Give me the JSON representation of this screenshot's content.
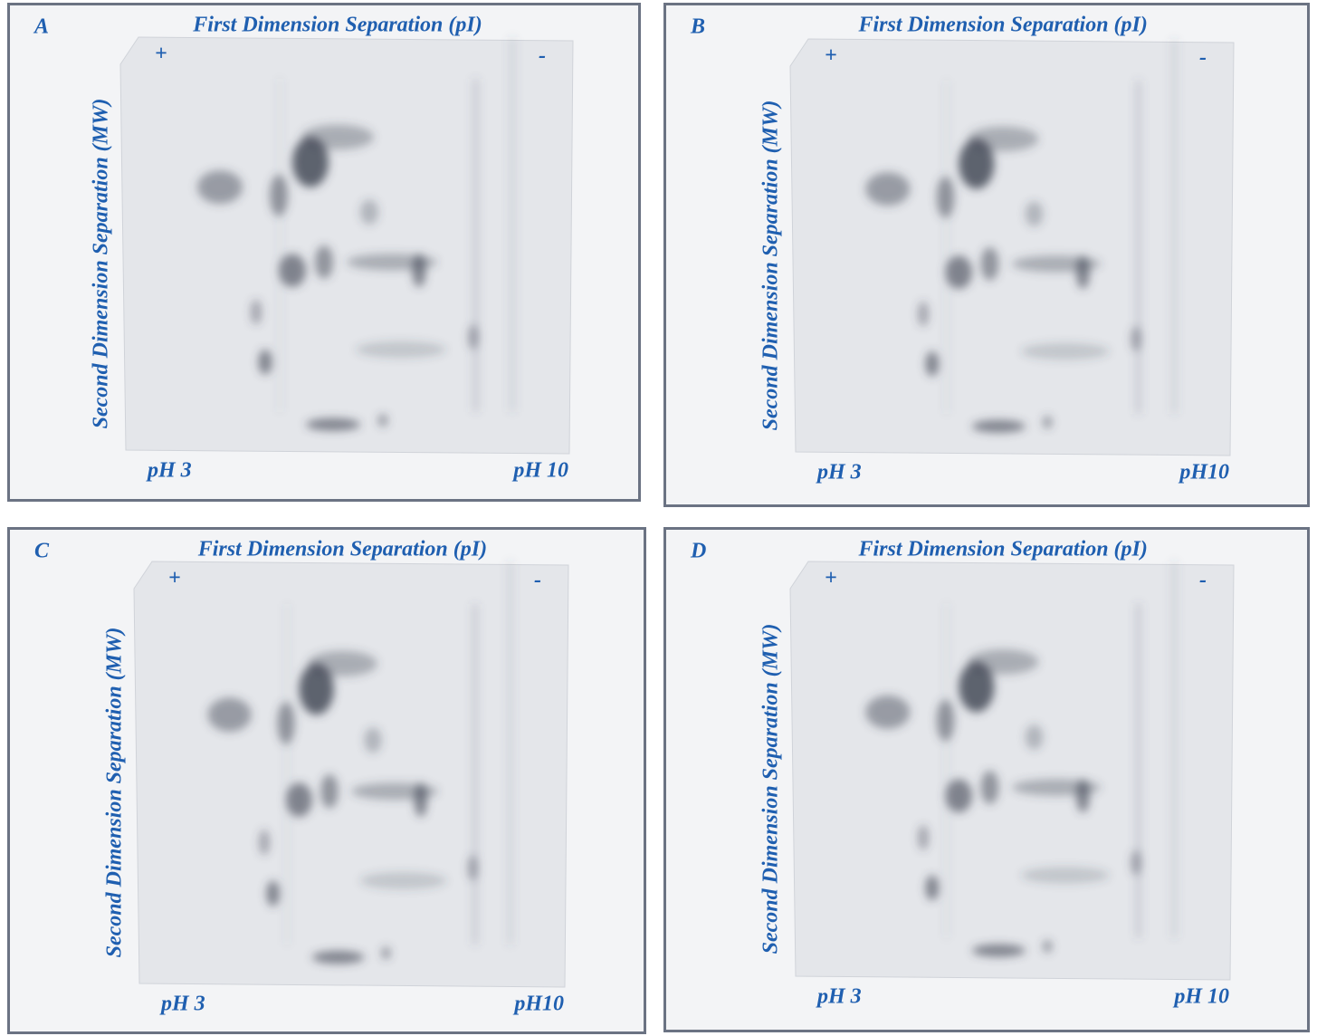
{
  "panels": [
    {
      "letter": "A",
      "title": "First Dimension Separation (pI)",
      "y_label": "Second Dimension Separation (MW)",
      "plus": "+",
      "minus": "-",
      "ph_left": "pH 3",
      "ph_right": "pH 10"
    },
    {
      "letter": "B",
      "title": "First Dimension Separation (pI)",
      "y_label": "Second Dimension Separation (MW)",
      "plus": "+",
      "minus": "-",
      "ph_left": "pH 3",
      "ph_right": "pH10"
    },
    {
      "letter": "C",
      "title": "First Dimension Separation (pI)",
      "y_label": "Second Dimension Separation (MW)",
      "plus": "+",
      "minus": "-",
      "ph_left": "pH 3",
      "ph_right": "pH10"
    },
    {
      "letter": "D",
      "title": "First Dimension Separation (pI)",
      "y_label": "Second Dimension Separation (MW)",
      "plus": "+",
      "minus": "-",
      "ph_left": "pH 3",
      "ph_right": "pH 10"
    }
  ]
}
